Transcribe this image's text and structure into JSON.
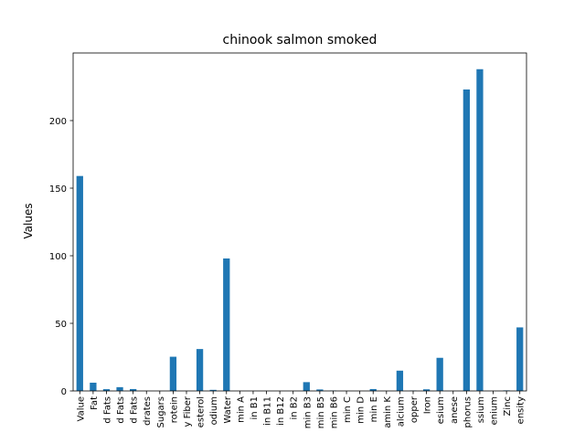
{
  "chart_data": {
    "type": "bar",
    "title": "chinook salmon smoked",
    "xlabel": "",
    "ylabel": "Values",
    "ylim": [
      0,
      250
    ],
    "yticks": [
      0,
      50,
      100,
      150,
      200
    ],
    "grid": false,
    "legend": "none",
    "bar_color": "#1f77b4",
    "categories": [
      "Value",
      "Fat",
      "d Fats",
      "d Fats",
      "d Fats",
      "drates",
      "Sugars",
      "rotein",
      "y Fiber",
      "esterol",
      "odium",
      "Water",
      "min A",
      "in B1",
      "in B11",
      "in B12",
      "in B2",
      "min B3",
      "min B5",
      "min B6",
      "min C",
      "min D",
      "min E",
      "amin K",
      "alcium",
      "opper",
      "Iron",
      "esium",
      "anese",
      "phorus",
      "ssium",
      "enium",
      "Zinc",
      "ensity"
    ],
    "values": [
      159,
      6.1,
      1.3,
      2.8,
      1.4,
      0,
      0,
      25.3,
      0,
      31,
      0.8,
      98,
      0,
      0,
      0,
      0,
      0,
      6.5,
      1.1,
      0.3,
      0,
      0,
      1.4,
      0,
      15,
      0.3,
      1.2,
      24.5,
      0,
      223,
      238,
      0,
      0.4,
      47
    ]
  }
}
